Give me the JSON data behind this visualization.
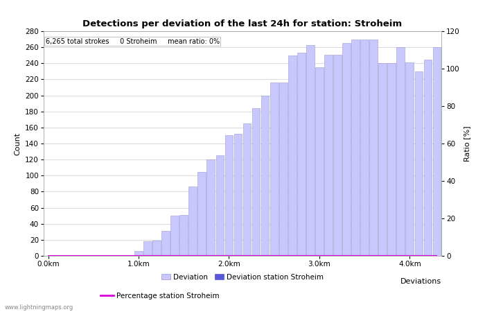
{
  "title": "Detections per deviation of the last 24h for station: Stroheim",
  "xlabel": "Deviations",
  "ylabel_left": "Count",
  "ylabel_right": "Ratio [%]",
  "annotation": "6,265 total strokes     0 Stroheim     mean ratio: 0%",
  "watermark": "www.lightningmaps.org",
  "bar_values": [
    0,
    0,
    0,
    0,
    0,
    0,
    0,
    0,
    0,
    0,
    6,
    18,
    19,
    31,
    50,
    51,
    86,
    105,
    120,
    125,
    150,
    152,
    165,
    184,
    200,
    216,
    216,
    250,
    253,
    263,
    235,
    251,
    251,
    265,
    270,
    270,
    270,
    240,
    240,
    260,
    241,
    230,
    245,
    260
  ],
  "station_bar_values": [
    0,
    0,
    0,
    0,
    0,
    0,
    0,
    0,
    0,
    0,
    0,
    0,
    0,
    0,
    0,
    0,
    0,
    0,
    0,
    0,
    0,
    0,
    0,
    0,
    0,
    0,
    0,
    0,
    0,
    0,
    0,
    0,
    0,
    0,
    0,
    0,
    0,
    0,
    0,
    0,
    0,
    0,
    0,
    0
  ],
  "x_tick_positions": [
    0,
    10,
    20,
    30,
    40
  ],
  "x_tick_labels": [
    "0.0km",
    "1.0km",
    "2.0km",
    "3.0km",
    "4.0km"
  ],
  "ylim_left": [
    0,
    280
  ],
  "ylim_right": [
    0,
    120
  ],
  "yticks_left": [
    0,
    20,
    40,
    60,
    80,
    100,
    120,
    140,
    160,
    180,
    200,
    220,
    240,
    260,
    280
  ],
  "yticks_right": [
    0,
    20,
    40,
    60,
    80,
    100,
    120
  ],
  "bar_color_light": "#c8c8ff",
  "bar_color_dark": "#5858d8",
  "bar_edge_color": "#9898cc",
  "ratio_line_color": "#dd00dd",
  "ratio_values": [
    0,
    0,
    0,
    0,
    0,
    0,
    0,
    0,
    0,
    0,
    0,
    0,
    0,
    0,
    0,
    0,
    0,
    0,
    0,
    0,
    0,
    0,
    0,
    0,
    0,
    0,
    0,
    0,
    0,
    0,
    0,
    0,
    0,
    0,
    0,
    0,
    0,
    0,
    0,
    0,
    0,
    0,
    0,
    0
  ],
  "background_color": "#ffffff",
  "grid_color": "#cccccc",
  "title_fontsize": 9.5,
  "label_fontsize": 8,
  "tick_fontsize": 7.5,
  "legend_fontsize": 7.5,
  "annotation_fontsize": 7
}
